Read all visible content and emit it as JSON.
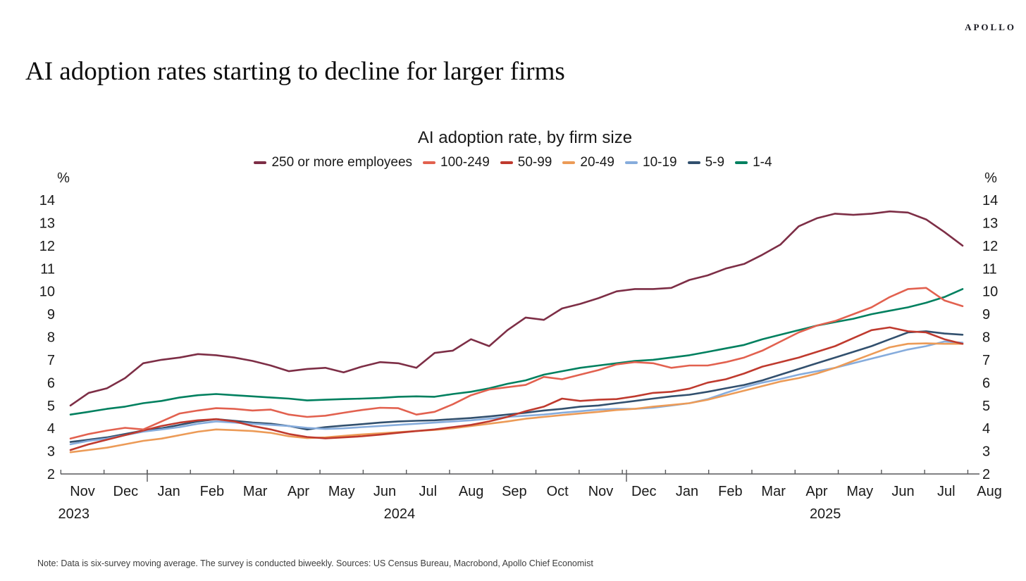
{
  "header": {
    "logo": "APOLLO",
    "title": "AI adoption rates starting to decline for larger firms"
  },
  "chart_data": {
    "type": "line",
    "title": "AI adoption rate, by firm size",
    "ylabel": "%",
    "ylim": [
      2,
      14
    ],
    "yticks": [
      14,
      13,
      12,
      11,
      10,
      9,
      8,
      7,
      6,
      5,
      4,
      3,
      2
    ],
    "grid": false,
    "legend_position": "top",
    "x_months": [
      "Nov",
      "Dec",
      "Jan",
      "Feb",
      "Mar",
      "Apr",
      "May",
      "Jun",
      "Jul",
      "Aug",
      "Sep",
      "Oct",
      "Nov",
      "Dec",
      "Jan",
      "Feb",
      "Mar",
      "Apr",
      "May",
      "Jun",
      "Jul",
      "Aug"
    ],
    "x_years": [
      {
        "label": "2023",
        "month_pos": -0.2
      },
      {
        "label": "2024",
        "month_pos": 7.34
      },
      {
        "label": "2025",
        "month_pos": 17.2
      }
    ],
    "x_note": "biweekly survey observations, Nov 2023 - Aug 2025",
    "series": [
      {
        "name": "250 or more employees",
        "color": "#7D2E46",
        "values": [
          5.0,
          5.55,
          5.75,
          6.2,
          6.85,
          7.0,
          7.1,
          7.25,
          7.2,
          7.1,
          6.95,
          6.75,
          6.5,
          6.6,
          6.65,
          6.45,
          6.7,
          6.9,
          6.85,
          6.65,
          7.3,
          7.4,
          7.9,
          7.6,
          8.3,
          8.85,
          8.75,
          9.25,
          9.45,
          9.7,
          10.0,
          10.1,
          10.1,
          10.15,
          10.5,
          10.7,
          11.0,
          11.2,
          11.6,
          12.05,
          12.85,
          13.2,
          13.4,
          13.35,
          13.4,
          13.5,
          13.45,
          13.15,
          12.6,
          12.0
        ]
      },
      {
        "name": "100-249",
        "color": "#E2614F",
        "values": [
          3.55,
          3.75,
          3.9,
          4.02,
          3.95,
          4.3,
          4.65,
          4.78,
          4.88,
          4.85,
          4.78,
          4.82,
          4.6,
          4.5,
          4.55,
          4.68,
          4.8,
          4.9,
          4.88,
          4.6,
          4.72,
          5.05,
          5.45,
          5.7,
          5.8,
          5.9,
          6.25,
          6.15,
          6.35,
          6.55,
          6.8,
          6.9,
          6.85,
          6.65,
          6.75,
          6.75,
          6.9,
          7.1,
          7.4,
          7.8,
          8.2,
          8.5,
          8.7,
          9.0,
          9.3,
          9.75,
          10.1,
          10.15,
          9.6,
          9.35
        ]
      },
      {
        "name": "50-99",
        "color": "#BF3A2E",
        "values": [
          3.05,
          3.3,
          3.5,
          3.7,
          3.9,
          4.1,
          4.25,
          4.35,
          4.4,
          4.3,
          4.1,
          3.95,
          3.75,
          3.62,
          3.56,
          3.6,
          3.65,
          3.72,
          3.8,
          3.88,
          3.95,
          4.05,
          4.15,
          4.3,
          4.5,
          4.75,
          4.95,
          5.3,
          5.2,
          5.25,
          5.28,
          5.4,
          5.55,
          5.6,
          5.74,
          6.0,
          6.15,
          6.4,
          6.7,
          6.9,
          7.1,
          7.35,
          7.6,
          7.95,
          8.3,
          8.42,
          8.25,
          8.2,
          7.9,
          7.7
        ]
      },
      {
        "name": "20-49",
        "color": "#EC9B57",
        "values": [
          2.95,
          3.05,
          3.15,
          3.3,
          3.45,
          3.55,
          3.7,
          3.85,
          3.95,
          3.92,
          3.88,
          3.8,
          3.65,
          3.57,
          3.6,
          3.67,
          3.73,
          3.78,
          3.83,
          3.88,
          3.93,
          4.0,
          4.1,
          4.2,
          4.3,
          4.42,
          4.5,
          4.58,
          4.65,
          4.72,
          4.8,
          4.85,
          4.95,
          5.02,
          5.1,
          5.25,
          5.45,
          5.65,
          5.85,
          6.05,
          6.2,
          6.4,
          6.65,
          6.95,
          7.25,
          7.55,
          7.7,
          7.72,
          7.7,
          7.7
        ]
      },
      {
        "name": "10-19",
        "color": "#86ACDC",
        "values": [
          3.3,
          3.45,
          3.55,
          3.7,
          3.85,
          3.95,
          4.05,
          4.2,
          4.3,
          4.25,
          4.2,
          4.15,
          4.1,
          4.02,
          3.97,
          4.0,
          4.05,
          4.1,
          4.15,
          4.2,
          4.25,
          4.3,
          4.35,
          4.42,
          4.5,
          4.55,
          4.6,
          4.68,
          4.75,
          4.82,
          4.85,
          4.85,
          4.9,
          5.0,
          5.1,
          5.28,
          5.55,
          5.8,
          6.0,
          6.16,
          6.35,
          6.5,
          6.65,
          6.85,
          7.05,
          7.25,
          7.45,
          7.6,
          7.8,
          7.75
        ]
      },
      {
        "name": "5-9",
        "color": "#32506E",
        "values": [
          3.4,
          3.5,
          3.6,
          3.75,
          3.9,
          4.0,
          4.15,
          4.3,
          4.4,
          4.33,
          4.25,
          4.2,
          4.1,
          3.95,
          4.05,
          4.12,
          4.18,
          4.25,
          4.3,
          4.33,
          4.35,
          4.4,
          4.45,
          4.52,
          4.6,
          4.68,
          4.78,
          4.85,
          4.95,
          5.0,
          5.1,
          5.2,
          5.3,
          5.4,
          5.47,
          5.6,
          5.75,
          5.9,
          6.1,
          6.35,
          6.6,
          6.85,
          7.1,
          7.35,
          7.6,
          7.9,
          8.2,
          8.25,
          8.15,
          8.1
        ]
      },
      {
        "name": "1-4",
        "color": "#00805F",
        "values": [
          4.6,
          4.72,
          4.85,
          4.95,
          5.1,
          5.2,
          5.35,
          5.45,
          5.5,
          5.45,
          5.4,
          5.35,
          5.3,
          5.22,
          5.25,
          5.28,
          5.3,
          5.33,
          5.38,
          5.4,
          5.38,
          5.5,
          5.6,
          5.75,
          5.95,
          6.1,
          6.35,
          6.5,
          6.65,
          6.75,
          6.85,
          6.95,
          7.0,
          7.1,
          7.2,
          7.35,
          7.5,
          7.65,
          7.9,
          8.1,
          8.3,
          8.5,
          8.65,
          8.8,
          9.0,
          9.15,
          9.3,
          9.5,
          9.75,
          10.1
        ]
      }
    ]
  },
  "footer": {
    "note": "Note: Data is six-survey moving average. The survey is conducted biweekly. Sources: US Census Bureau, Macrobond, Apollo Chief Economist"
  }
}
